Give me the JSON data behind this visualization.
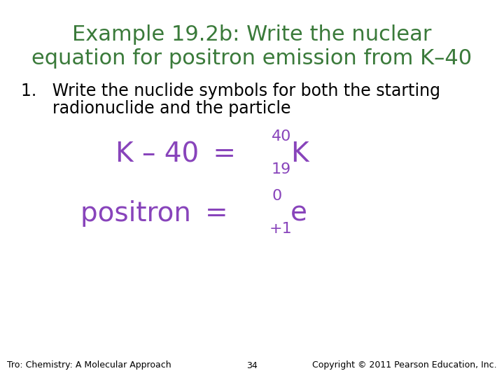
{
  "title_line1": "Example 19.2b: Write the nuclear",
  "title_line2": "equation for positron emission from K–40",
  "title_color": "#3a7a3a",
  "body_text_line1": "1.   Write the nuclide symbols for both the starting",
  "body_text_line2": "      radionuclide and the particle",
  "body_color": "#000000",
  "eq_color": "#8844bb",
  "footer_left": "Tro: Chemistry: A Molecular Approach",
  "footer_center": "34",
  "footer_right": "Copyright © 2011 Pearson Education, Inc.",
  "footer_color": "#000000",
  "bg_color": "#ffffff",
  "title_fontsize": 22,
  "body_fontsize": 17,
  "eq_fontsize": 28,
  "eq_small_fontsize": 16,
  "footer_fontsize": 9
}
